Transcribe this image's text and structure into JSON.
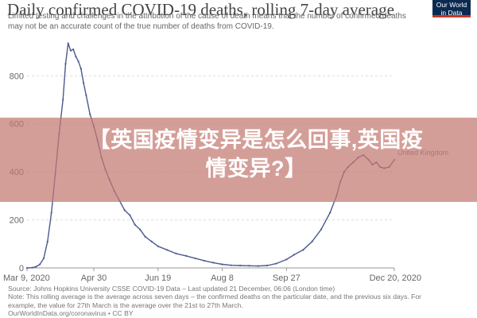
{
  "title": "Daily confirmed COVID-19 deaths, rolling 7-day average",
  "subtitle_lines": [
    "Limited testing and challenges in the attribution of the cause of death means that the number of confirmed deaths",
    "may not be an accurate count of the true number of deaths from COVID-19."
  ],
  "logo_lines": [
    "Our World",
    "in Data"
  ],
  "footer_lines": [
    "Source: Johns Hopkins University CSSE COVID-19 Data – Last updated 21 December, 06:06 (London time)",
    "Note: This rolling average is the average across seven days – the confirmed deaths on the particular date, and the previous six days. For",
    "example, the value for 27th March is the average over the 21st to 27th March.",
    "OurWorldInData.org/coronavirus • CC BY"
  ],
  "overlay_caption_lines": [
    "【英国疫情变异是怎么回事,英国疫",
    "情变异?】"
  ],
  "chart_data": {
    "type": "line",
    "title": "Daily confirmed COVID-19 deaths, rolling 7-day average",
    "x_tick_labels": [
      "Mar 9, 2020",
      "Apr 30",
      "Jun 19",
      "Aug 8",
      "Sep 27",
      "Dec 20, 2020"
    ],
    "x_ticks": [
      "2020-03-09",
      "2020-04-30",
      "2020-06-19",
      "2020-08-08",
      "2020-09-27",
      "2020-12-20"
    ],
    "y_ticks": [
      0,
      200,
      400,
      600,
      800
    ],
    "ylim": [
      0,
      950
    ],
    "xlim": [
      "2020-03-09",
      "2020-12-20"
    ],
    "grid": "horizontal dashed",
    "color": "#4a5a8f",
    "series": [
      {
        "name": "United Kingdom",
        "points": [
          [
            "2020-03-09",
            0
          ],
          [
            "2020-03-13",
            1
          ],
          [
            "2020-03-16",
            5
          ],
          [
            "2020-03-19",
            15
          ],
          [
            "2020-03-22",
            40
          ],
          [
            "2020-03-25",
            110
          ],
          [
            "2020-03-28",
            230
          ],
          [
            "2020-03-31",
            390
          ],
          [
            "2020-04-03",
            560
          ],
          [
            "2020-04-06",
            700
          ],
          [
            "2020-04-08",
            850
          ],
          [
            "2020-04-10",
            935
          ],
          [
            "2020-04-12",
            905
          ],
          [
            "2020-04-14",
            910
          ],
          [
            "2020-04-16",
            880
          ],
          [
            "2020-04-18",
            860
          ],
          [
            "2020-04-20",
            830
          ],
          [
            "2020-04-22",
            770
          ],
          [
            "2020-04-24",
            720
          ],
          [
            "2020-04-27",
            640
          ],
          [
            "2020-04-30",
            590
          ],
          [
            "2020-05-03",
            530
          ],
          [
            "2020-05-06",
            460
          ],
          [
            "2020-05-09",
            410
          ],
          [
            "2020-05-12",
            370
          ],
          [
            "2020-05-16",
            320
          ],
          [
            "2020-05-20",
            280
          ],
          [
            "2020-05-24",
            240
          ],
          [
            "2020-05-28",
            220
          ],
          [
            "2020-06-01",
            180
          ],
          [
            "2020-06-05",
            160
          ],
          [
            "2020-06-09",
            130
          ],
          [
            "2020-06-14",
            110
          ],
          [
            "2020-06-19",
            90
          ],
          [
            "2020-06-26",
            75
          ],
          [
            "2020-07-03",
            60
          ],
          [
            "2020-07-11",
            50
          ],
          [
            "2020-07-18",
            40
          ],
          [
            "2020-07-25",
            30
          ],
          [
            "2020-08-01",
            22
          ],
          [
            "2020-08-08",
            15
          ],
          [
            "2020-08-15",
            11
          ],
          [
            "2020-08-22",
            10
          ],
          [
            "2020-08-29",
            9
          ],
          [
            "2020-09-05",
            8
          ],
          [
            "2020-09-12",
            10
          ],
          [
            "2020-09-19",
            18
          ],
          [
            "2020-09-27",
            35
          ],
          [
            "2020-10-03",
            55
          ],
          [
            "2020-10-10",
            75
          ],
          [
            "2020-10-17",
            110
          ],
          [
            "2020-10-24",
            160
          ],
          [
            "2020-10-31",
            230
          ],
          [
            "2020-11-05",
            300
          ],
          [
            "2020-11-08",
            360
          ],
          [
            "2020-11-11",
            400
          ],
          [
            "2020-11-14",
            420
          ],
          [
            "2020-11-18",
            440
          ],
          [
            "2020-11-22",
            460
          ],
          [
            "2020-11-26",
            470
          ],
          [
            "2020-11-30",
            450
          ],
          [
            "2020-12-03",
            430
          ],
          [
            "2020-12-06",
            440
          ],
          [
            "2020-12-09",
            420
          ],
          [
            "2020-12-12",
            415
          ],
          [
            "2020-12-16",
            420
          ],
          [
            "2020-12-20",
            450
          ]
        ],
        "end_label": "United Kingdom"
      }
    ]
  }
}
